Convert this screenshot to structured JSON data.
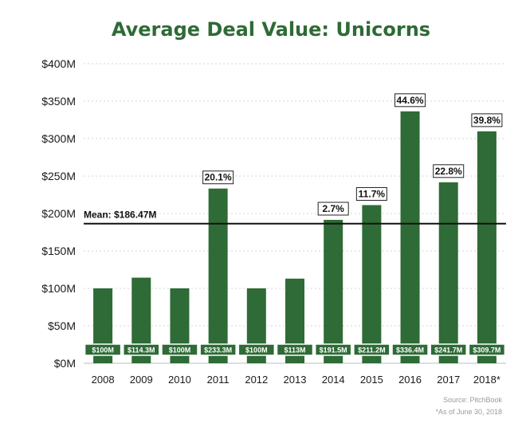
{
  "chart_data": {
    "type": "bar",
    "title": "Average Deal Value: Unicorns",
    "xlabel": "",
    "ylabel": "",
    "ylim": [
      0,
      400
    ],
    "yticks": [
      "$0M",
      "$50M",
      "$100M",
      "$150M",
      "$200M",
      "$250M",
      "$300M",
      "$350M",
      "$400M"
    ],
    "ytick_values": [
      0,
      50,
      100,
      150,
      200,
      250,
      300,
      350,
      400
    ],
    "categories": [
      "2008",
      "2009",
      "2010",
      "2011",
      "2012",
      "2013",
      "2014",
      "2015",
      "2016",
      "2017",
      "2018*"
    ],
    "values": [
      100,
      114.3,
      100,
      233.3,
      100,
      113,
      191.5,
      211.2,
      336.4,
      241.7,
      309.7
    ],
    "value_labels": [
      "$100M",
      "$114.3M",
      "$100M",
      "$233.3M",
      "$100M",
      "$113M",
      "$191.5M",
      "$211.2M",
      "$336.4M",
      "$241.7M",
      "$309.7M"
    ],
    "pct_labels": [
      "",
      "",
      "",
      "20.1%",
      "",
      "",
      "2.7%",
      "11.7%",
      "44.6%",
      "22.8%",
      "39.8%"
    ],
    "mean": {
      "label": "Mean: $186.47M",
      "value": 186.47
    },
    "grid": true,
    "bar_color": "#2e6b36",
    "title_color": "#2e6b36"
  },
  "source": {
    "line1": "Source: PitchBook",
    "line2": "*As of June 30, 2018"
  }
}
